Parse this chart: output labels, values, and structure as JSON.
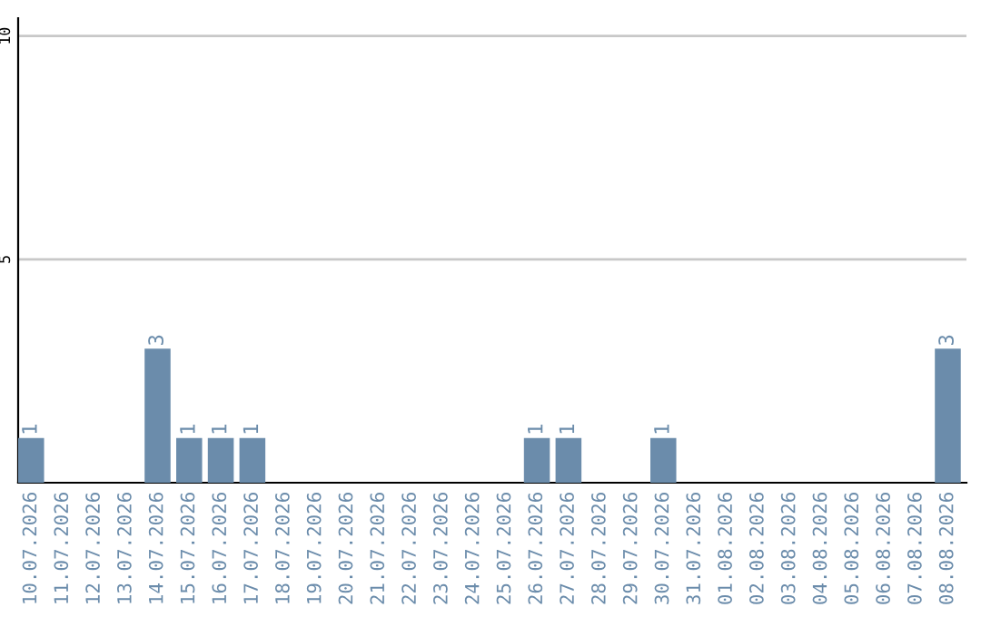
{
  "chart_data": {
    "type": "bar",
    "categories": [
      "10.07.2026",
      "11.07.2026",
      "12.07.2026",
      "13.07.2026",
      "14.07.2026",
      "15.07.2026",
      "16.07.2026",
      "17.07.2026",
      "18.07.2026",
      "19.07.2026",
      "20.07.2026",
      "21.07.2026",
      "22.07.2026",
      "23.07.2026",
      "24.07.2026",
      "25.07.2026",
      "26.07.2026",
      "27.07.2026",
      "28.07.2026",
      "29.07.2026",
      "30.07.2026",
      "31.07.2026",
      "01.08.2026",
      "02.08.2026",
      "03.08.2026",
      "04.08.2026",
      "05.08.2026",
      "06.08.2026",
      "07.08.2026",
      "08.08.2026"
    ],
    "values": [
      1,
      0,
      0,
      0,
      3,
      1,
      1,
      1,
      0,
      0,
      0,
      0,
      0,
      0,
      0,
      0,
      1,
      1,
      0,
      0,
      1,
      0,
      0,
      0,
      0,
      0,
      0,
      0,
      0,
      3
    ],
    "value_labels": [
      "1",
      null,
      null,
      null,
      "3",
      "1",
      "1",
      "1",
      null,
      null,
      null,
      null,
      null,
      null,
      null,
      null,
      "1",
      "1",
      null,
      null,
      "1",
      null,
      null,
      null,
      null,
      null,
      null,
      null,
      null,
      "3"
    ],
    "color": "#6b8cab",
    "ylim": [
      0,
      10.4
    ],
    "yticks": [
      5,
      10
    ],
    "grid": "y"
  }
}
